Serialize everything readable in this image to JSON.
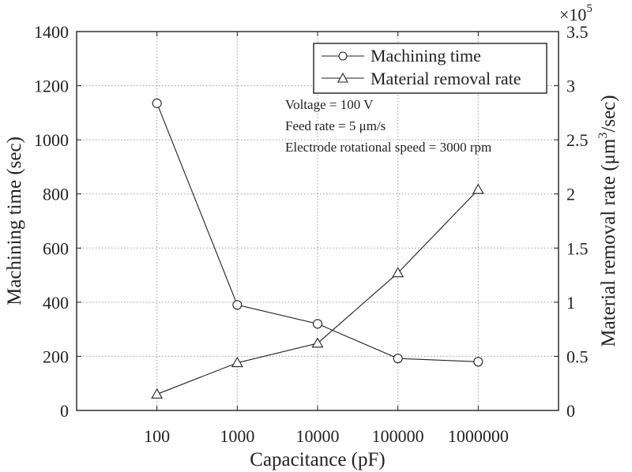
{
  "chart_data": {
    "type": "line",
    "categories": [
      "100",
      "1000",
      "10000",
      "100000",
      "1000000"
    ],
    "xlabel": "Capacitance (pF)",
    "ylabel_left": "Machining time (sec)",
    "ylabel_right_prefix": "Material removal rate (μm",
    "ylabel_right_sup": "3",
    "ylabel_right_suffix": "/sec)",
    "ylim_left": [
      0,
      1400
    ],
    "yticks_left": [
      "0",
      "200",
      "400",
      "600",
      "800",
      "1000",
      "1200",
      "1400"
    ],
    "ylim_right": [
      0,
      3.5
    ],
    "yticks_right": [
      "0",
      "0.5",
      "1",
      "1.5",
      "2",
      "2.5",
      "3",
      "3.5"
    ],
    "right_exponent_base": "×10",
    "right_exponent_power": "5",
    "grid": true,
    "legend_position": "top-right",
    "series": [
      {
        "name": "Machining time",
        "axis": "left",
        "marker": "circle",
        "values": [
          1135,
          390,
          320,
          192,
          180
        ]
      },
      {
        "name": "Material removal rate",
        "axis": "right",
        "marker": "triangle",
        "values": [
          0.15,
          0.44,
          0.62,
          1.27,
          2.04
        ]
      }
    ],
    "annotations": [
      "Voltage = 100 V",
      "Feed rate = 5 μm/s",
      "Electrode rotational speed = 3000 rpm"
    ]
  }
}
